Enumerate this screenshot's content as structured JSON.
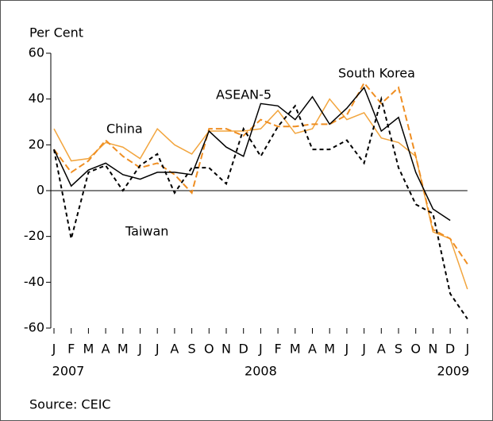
{
  "chart_data": {
    "type": "line",
    "y_axis_label": "Per Cent",
    "categories": [
      "J",
      "F",
      "M",
      "A",
      "M",
      "J",
      "J",
      "A",
      "S",
      "O",
      "N",
      "D",
      "J",
      "F",
      "M",
      "A",
      "M",
      "J",
      "J",
      "A",
      "S",
      "O",
      "N",
      "D",
      "J"
    ],
    "year_labels": [
      "2007",
      null,
      null,
      null,
      null,
      null,
      null,
      null,
      null,
      null,
      null,
      null,
      "2008",
      null,
      null,
      null,
      null,
      null,
      null,
      null,
      null,
      null,
      null,
      null,
      "2009"
    ],
    "ylim": [
      -60,
      60
    ],
    "yticks": [
      -60,
      -40,
      -20,
      0,
      20,
      40,
      60
    ],
    "zero_line": true,
    "series": [
      {
        "name": "China",
        "color": "#f2a53e",
        "dash": false,
        "values": [
          27,
          13,
          14,
          21,
          19,
          14,
          27,
          20,
          16,
          26,
          26,
          26,
          27,
          35,
          25,
          27,
          40,
          31,
          34,
          23,
          21,
          15,
          -18,
          -21,
          -43
        ]
      },
      {
        "name": "South Korea",
        "color": "#ef8e22",
        "dash": true,
        "values": [
          18,
          8,
          13,
          22,
          15,
          10,
          12,
          7,
          -1,
          27,
          27,
          24,
          31,
          28,
          28,
          29,
          29,
          33,
          47,
          38,
          45,
          15,
          -17,
          -21,
          -32
        ]
      },
      {
        "name": "ASEAN-5",
        "color": "#000000",
        "dash": false,
        "values": [
          18,
          2,
          9,
          12,
          7,
          5,
          8,
          8,
          7,
          26,
          19,
          15,
          38,
          37,
          31,
          41,
          29,
          36,
          45,
          26,
          32,
          8,
          -8,
          -13,
          null
        ]
      },
      {
        "name": "Taiwan",
        "color": "#000000",
        "dash": true,
        "values": [
          18,
          -21,
          8,
          11,
          0,
          11,
          16,
          -1,
          10,
          10,
          3,
          27,
          15,
          28,
          37,
          18,
          18,
          22,
          12,
          40,
          10,
          -6,
          -10,
          -45,
          -56
        ]
      }
    ],
    "source": "Source: CEIC"
  }
}
